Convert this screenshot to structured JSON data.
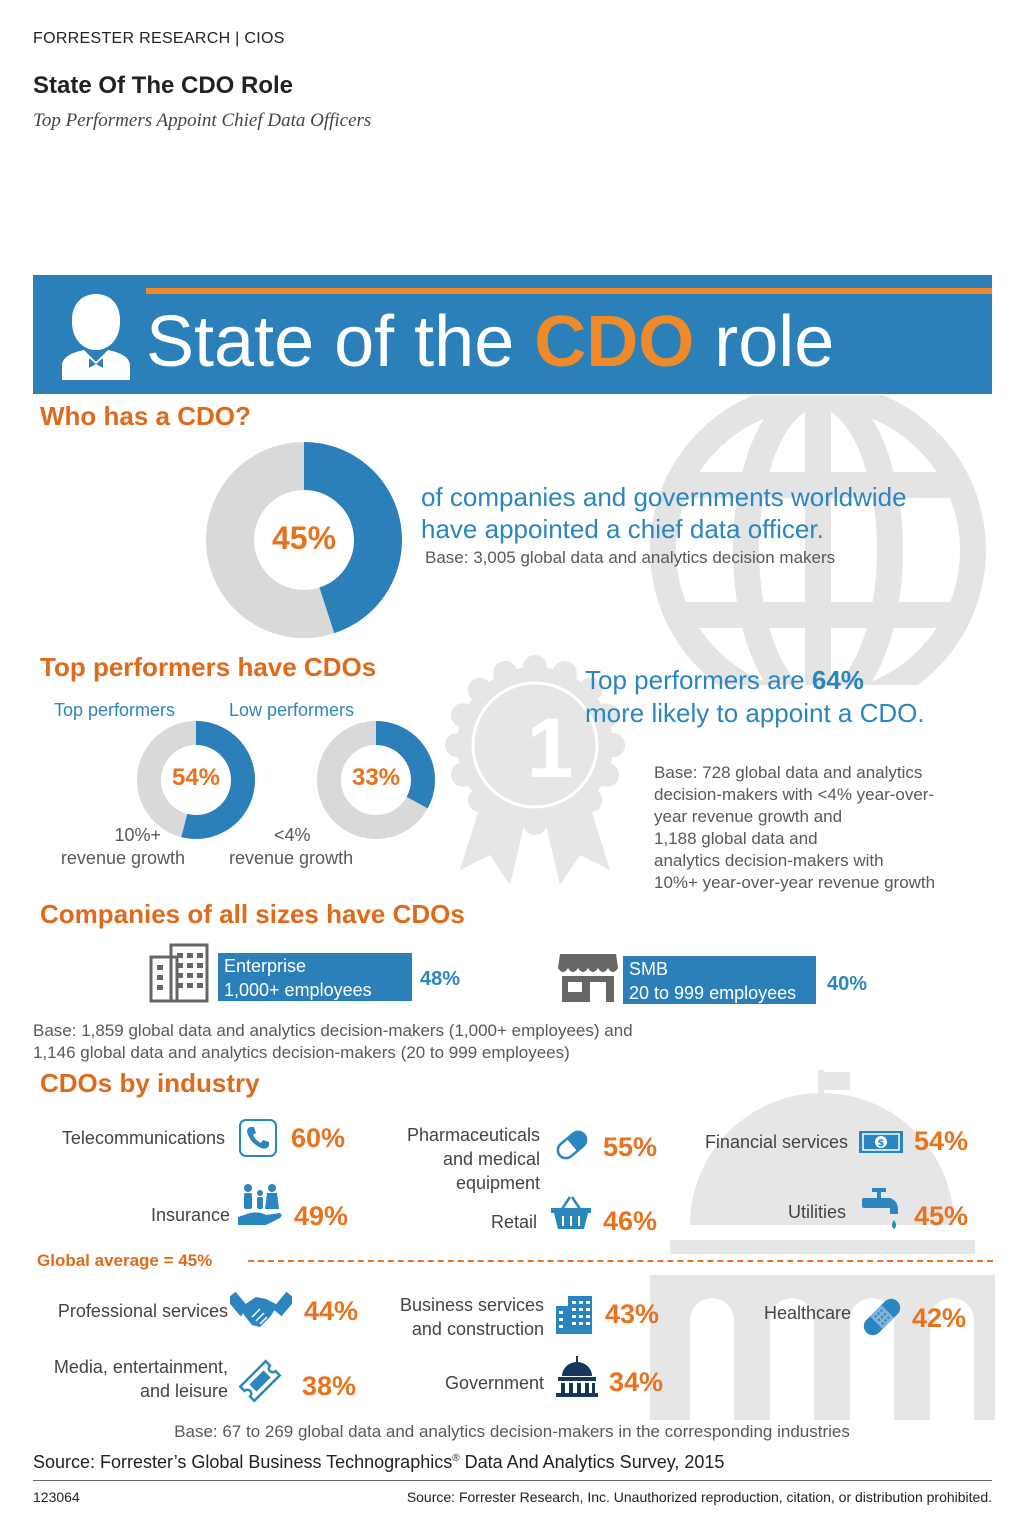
{
  "header": {
    "kicker": "FORRESTER RESEARCH  |  CIOS",
    "title": "State Of The CDO Role",
    "subtitle": "Top Performers Appoint Chief Data Officers"
  },
  "banner": {
    "title_pre": "State of the ",
    "title_hl": "CDO",
    "title_post": " role"
  },
  "who": {
    "heading": "Who has a CDO?",
    "value": 45,
    "pct_label": "45%",
    "line1": "of companies and governments worldwide",
    "line2": "have appointed a chief data officer.",
    "base": "Base: 3,005 global data and analytics decision makers"
  },
  "top": {
    "heading": "Top performers have CDOs",
    "top_label": "Top performers",
    "low_label": "Low performers",
    "top_value": 54,
    "top_pct": "54%",
    "low_value": 33,
    "low_pct": "33%",
    "top_caption1": "10%+",
    "top_caption2": "revenue growth",
    "low_caption1": "<4%",
    "low_caption2": "revenue growth",
    "ribbon_number": "1",
    "claim_pre": "Top performers are ",
    "claim_hl": "64%",
    "claim_line2": "more likely to appoint a CDO.",
    "base_lines": [
      "Base: 728 global data and analytics",
      "decision-makers with <4% year-over-",
      "year revenue growth and",
      "1,188 global data and",
      "analytics decision-makers with",
      "10%+ year-over-year revenue growth"
    ]
  },
  "sizes": {
    "heading": "Companies of all sizes have CDOs",
    "enterprise_line1": "Enterprise",
    "enterprise_line2": "1,000+ employees",
    "enterprise_pct": "48%",
    "smb_line1": "SMB",
    "smb_line2": "20 to 999 employees",
    "smb_pct": "40%",
    "base_line1": "Base: 1,859 global data and analytics decision-makers (1,000+ employees) and",
    "base_line2": "1,146 global data and analytics decision-makers (20 to 999 employees)"
  },
  "industry": {
    "heading": "CDOs by industry",
    "telecom": {
      "label": "Telecommunications",
      "pct": "60%",
      "icon": "phone-icon"
    },
    "pharma": {
      "label1": "Pharmaceuticals",
      "label2": "and medical",
      "label3": "equipment",
      "pct": "55%",
      "icon": "pill-icon"
    },
    "financial": {
      "label": "Financial services",
      "pct": "54%",
      "icon": "dollar-bill-icon"
    },
    "insurance": {
      "label": "Insurance",
      "pct": "49%",
      "icon": "family-hand-icon"
    },
    "retail": {
      "label": "Retail",
      "pct": "46%",
      "icon": "basket-icon"
    },
    "utilities": {
      "label": "Utilities",
      "pct": "45%",
      "icon": "faucet-icon"
    },
    "average": "Global average = 45%",
    "professional": {
      "label": "Professional services",
      "pct": "44%",
      "icon": "handshake-icon"
    },
    "business": {
      "label1": "Business services",
      "label2": "and construction",
      "pct": "43%",
      "icon": "office-building-icon"
    },
    "healthcare": {
      "label": "Healthcare",
      "pct": "42%",
      "icon": "bandage-icon"
    },
    "media": {
      "label1": "Media, entertainment,",
      "label2": "and leisure",
      "pct": "38%",
      "icon": "ticket-icon"
    },
    "government": {
      "label": "Government",
      "pct": "34%",
      "icon": "capitol-dome-icon"
    }
  },
  "footer": {
    "base": "Base: 67 to 269 global data and analytics decision-makers in the corresponding industries",
    "source_pre": "Source: Forrester’s Global Business Technographics",
    "source_reg": "®",
    "source_post": " Data And Analytics Survey, 2015",
    "id": "123064",
    "copyright": "Source: Forrester Research, Inc. Unauthorized reproduction, citation, or distribution prohibited."
  },
  "colors": {
    "brand_blue": "#2b80b9",
    "accent_orange": "#e8731f",
    "donut_gray": "#d9d9d9",
    "watermark_gray": "#e6e6e6"
  }
}
